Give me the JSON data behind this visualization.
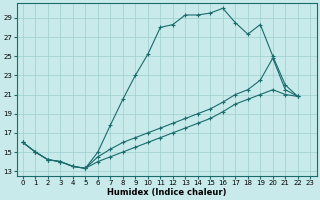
{
  "bg_color": "#c8eaea",
  "grid_color": "#9ecece",
  "line_color": "#1a6b6b",
  "xlabel": "Humidex (Indice chaleur)",
  "xlim": [
    -0.5,
    23.5
  ],
  "ylim": [
    12.5,
    30.5
  ],
  "yticks": [
    13,
    15,
    17,
    19,
    21,
    23,
    25,
    27,
    29
  ],
  "xticks": [
    0,
    1,
    2,
    3,
    4,
    5,
    6,
    7,
    8,
    9,
    10,
    11,
    12,
    13,
    14,
    15,
    16,
    17,
    18,
    19,
    20,
    21,
    22,
    23
  ],
  "line1_x": [
    0,
    1,
    2,
    3,
    4,
    5,
    6,
    7,
    8,
    9,
    10,
    11,
    12,
    13,
    14,
    15,
    16,
    17,
    18,
    19,
    20,
    21,
    22
  ],
  "line1_y": [
    16.0,
    15.0,
    14.2,
    14.0,
    13.5,
    13.3,
    15.0,
    17.8,
    20.5,
    23.0,
    25.2,
    28.0,
    28.3,
    29.3,
    29.3,
    29.5,
    30.0,
    28.5,
    27.3,
    28.3,
    25.0,
    22.0,
    20.8
  ],
  "line2_x": [
    0,
    1,
    2,
    3,
    4,
    5,
    6,
    7,
    8,
    9,
    10,
    11,
    12,
    13,
    14,
    15,
    16,
    17,
    18,
    19,
    20,
    21,
    22
  ],
  "line2_y": [
    16.0,
    15.0,
    14.2,
    14.0,
    13.5,
    13.3,
    14.5,
    15.3,
    16.0,
    16.5,
    17.0,
    17.5,
    18.0,
    18.5,
    19.0,
    19.5,
    20.2,
    21.0,
    21.5,
    22.5,
    24.8,
    21.5,
    20.8
  ],
  "line3_x": [
    0,
    1,
    2,
    3,
    4,
    5,
    6,
    7,
    8,
    9,
    10,
    11,
    12,
    13,
    14,
    15,
    16,
    17,
    18,
    19,
    20,
    21,
    22
  ],
  "line3_y": [
    16.0,
    15.0,
    14.2,
    14.0,
    13.5,
    13.3,
    14.0,
    14.5,
    15.0,
    15.5,
    16.0,
    16.5,
    17.0,
    17.5,
    18.0,
    18.5,
    19.2,
    20.0,
    20.5,
    21.0,
    21.5,
    21.0,
    20.8
  ]
}
